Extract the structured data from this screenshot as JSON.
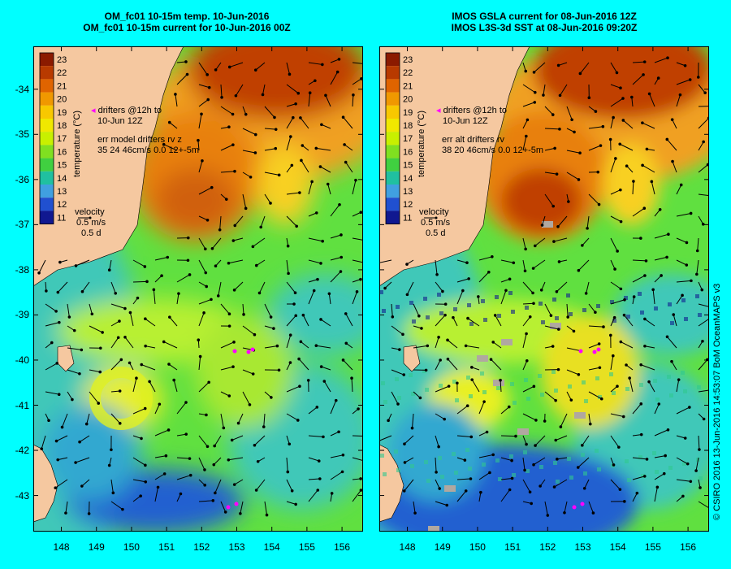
{
  "panels": [
    {
      "title_line1": "OM_fc01 10-15m temp. 10-Jun-2016",
      "title_line2": "OM_fc01 10-15m current for 10-Jun-2016 00Z",
      "drifters_line1": "drifters @12h to",
      "drifters_line2": "10-Jun 12Z",
      "err_line1": "err model drifters rv z",
      "err_line2": "35 24 46cm/s 0.0 12+-5m",
      "velocity_label": "velocity",
      "velocity_scale1": "0.5 m/s",
      "velocity_scale2": "0.5 d",
      "colorbar_title": "temperature (°C)"
    },
    {
      "title_line1": "IMOS GSLA current for 08-Jun-2016 12Z",
      "title_line2": "IMOS L3S-3d SST at 08-Jun-2016 09:20Z",
      "drifters_line1": "drifters @12h to",
      "drifters_line2": "10-Jun 12Z",
      "err_line1": "err alt drifters rv",
      "err_line2": "38 20 46cm/s 0.0 12+-5m",
      "velocity_label": "velocity",
      "velocity_scale1": "0.5 m/s",
      "velocity_scale2": "0.5 d",
      "colorbar_title": "temperature (°C)"
    }
  ],
  "colorbar_ticks": [
    "23",
    "22",
    "21",
    "20",
    "19",
    "18",
    "17",
    "16",
    "15",
    "14",
    "13",
    "12",
    "11"
  ],
  "y_ticks": [
    "-34",
    "-35",
    "-36",
    "-37",
    "-38",
    "-39",
    "-40",
    "-41",
    "-42",
    "-43"
  ],
  "x_ticks": [
    "148",
    "149",
    "150",
    "151",
    "152",
    "153",
    "154",
    "155",
    "156"
  ],
  "credit": "© CSIRO 2016  13-Jun-2016 14:53:07 BoM OceanMAPS v3",
  "colors": {
    "background": "#00ffff",
    "land": "#f5c8a0",
    "ocean_cool": "#40c8b8",
    "ocean_mid": "#60e040",
    "ocean_warm": "#f0a020",
    "ocean_hot": "#c04000",
    "ocean_cold": "#2060d0",
    "drifter": "#ff00ff"
  },
  "colorbar_scale": [
    "#8b1a00",
    "#b83a00",
    "#e06400",
    "#f09800",
    "#f8c800",
    "#f0e800",
    "#c8f000",
    "#80e020",
    "#40d040",
    "#20c0a0",
    "#40a0e0",
    "#2050d0",
    "#101890"
  ],
  "map_extent": {
    "lon_min": 147.2,
    "lon_max": 156.6,
    "lat_min": -43.8,
    "lat_max": -33.05
  }
}
